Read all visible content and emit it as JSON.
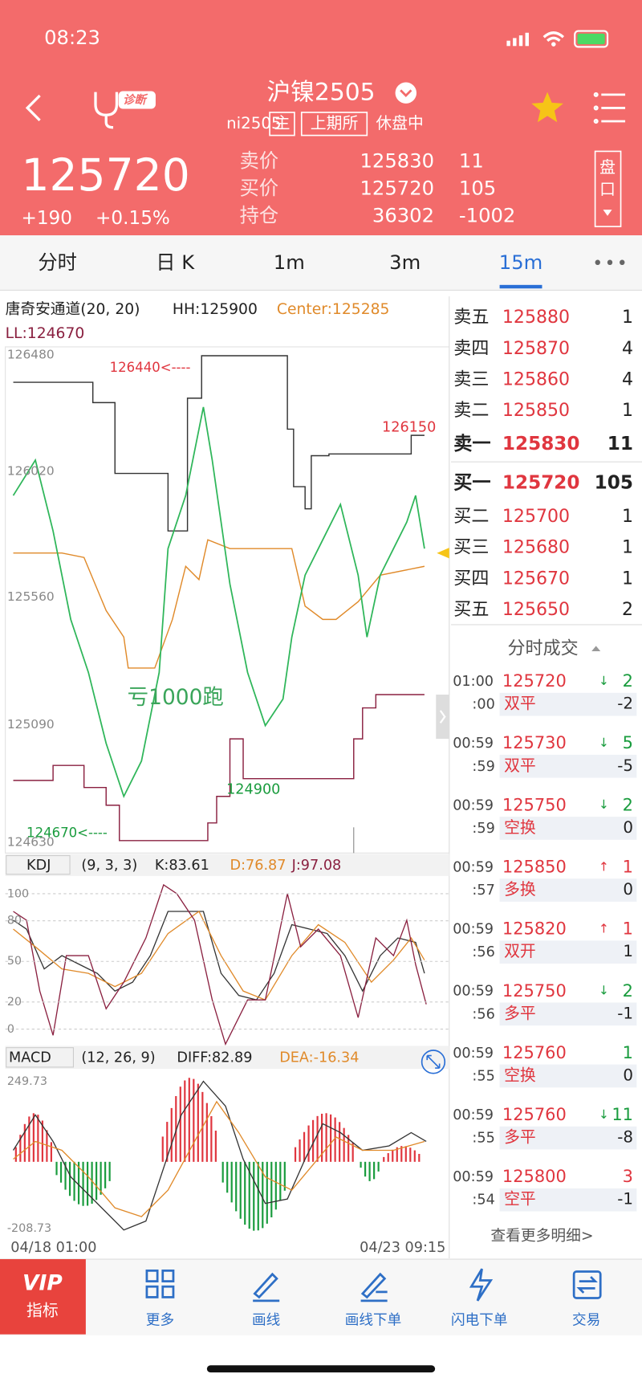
{
  "status": {
    "time": "08:23"
  },
  "header": {
    "title": "沪镍2505",
    "diagnose": "诊断",
    "code": "ni2505",
    "tags": [
      "主",
      "上期所"
    ],
    "state": "休盘中"
  },
  "quote": {
    "price": 125720,
    "change": "+190",
    "change_pct": "+0.15%",
    "rows": [
      {
        "label": "卖价",
        "price": 125830,
        "qty": 11
      },
      {
        "label": "买价",
        "price": 125720,
        "qty": 105
      },
      {
        "label": "持仓",
        "price": 36302,
        "qty": -1002
      }
    ],
    "side_button": [
      "盘",
      "口"
    ]
  },
  "tabs": {
    "items": [
      "分时",
      "日 K",
      "1m",
      "3m",
      "15m"
    ],
    "active": 4
  },
  "main_chart": {
    "indicator": "唐奇安通道(20, 20)",
    "hh": "HH:125900",
    "center": "Center:125285",
    "ll": "LL:124670",
    "axis_labels": [
      126480,
      126020,
      125560,
      125090,
      124630
    ],
    "annotations": {
      "high": "126440<----",
      "peak": "126150",
      "low": "124900",
      "floor": "124670<----",
      "note": "亏1000跑"
    }
  },
  "kdj": {
    "name": "KDJ",
    "params": "(9, 3, 3)",
    "k": "K:83.61",
    "d": "D:76.87",
    "j": "J:97.08",
    "ticks": [
      100,
      80,
      50,
      20,
      0
    ]
  },
  "macd": {
    "name": "MACD",
    "params": "(12, 26, 9)",
    "diff": "DIFF:82.89",
    "dea": "DEA:-16.34",
    "ticks": [
      249.73,
      -208.73
    ]
  },
  "x_labels": [
    "04/18 01:00",
    "04/23 09:15"
  ],
  "order_book": {
    "asks": [
      {
        "label": "卖五",
        "price": 125880,
        "qty": 1
      },
      {
        "label": "卖四",
        "price": 125870,
        "qty": 4
      },
      {
        "label": "卖三",
        "price": 125860,
        "qty": 4
      },
      {
        "label": "卖二",
        "price": 125850,
        "qty": 1
      },
      {
        "label": "卖一",
        "price": 125830,
        "qty": 11
      }
    ],
    "bids": [
      {
        "label": "买一",
        "price": 125720,
        "qty": 105
      },
      {
        "label": "买二",
        "price": 125700,
        "qty": 1
      },
      {
        "label": "买三",
        "price": 125680,
        "qty": 1
      },
      {
        "label": "买四",
        "price": 125670,
        "qty": 1
      },
      {
        "label": "买五",
        "price": 125650,
        "qty": 2
      }
    ]
  },
  "trades": {
    "title": "分时成交",
    "more": "查看更多明细>",
    "rows": [
      {
        "time": "01:00",
        "price": 125720,
        "dir": "↓",
        "qty": 2,
        "sec": ":00",
        "kind": "双平",
        "change": -2,
        "color": "#1a9c3e"
      },
      {
        "time": "00:59",
        "price": 125730,
        "dir": "↓",
        "qty": 5,
        "sec": ":59",
        "kind": "双平",
        "change": -5,
        "color": "#1a9c3e"
      },
      {
        "time": "00:59",
        "price": 125750,
        "dir": "↓",
        "qty": 2,
        "sec": ":59",
        "kind": "空换",
        "change": 0,
        "color": "#1a9c3e"
      },
      {
        "time": "00:59",
        "price": 125850,
        "dir": "↑",
        "qty": 1,
        "sec": ":57",
        "kind": "多换",
        "change": 0,
        "color": "#e0363f"
      },
      {
        "time": "00:59",
        "price": 125820,
        "dir": "↑",
        "qty": 1,
        "sec": ":56",
        "kind": "双开",
        "change": 1,
        "color": "#e0363f"
      },
      {
        "time": "00:59",
        "price": 125750,
        "dir": "↓",
        "qty": 2,
        "sec": ":56",
        "kind": "多平",
        "change": -1,
        "color": "#1a9c3e"
      },
      {
        "time": "00:59",
        "price": 125760,
        "qty": 1,
        "sec": ":55",
        "kind": "空换",
        "change": 0,
        "color": "#1a9c3e"
      },
      {
        "time": "00:59",
        "price": 125760,
        "dir": "↓",
        "qty": 11,
        "sec": ":55",
        "kind": "多平",
        "change": -8,
        "color": "#1a9c3e"
      },
      {
        "time": "00:59",
        "price": 125800,
        "qty": 3,
        "sec": ":54",
        "kind": "空平",
        "change": -1,
        "color": "#e0363f"
      }
    ]
  },
  "toolbar": {
    "vip": "VIP",
    "vip_label": "指标",
    "items": [
      "更多",
      "画线",
      "画线下单",
      "闪电下单",
      "交易"
    ]
  }
}
